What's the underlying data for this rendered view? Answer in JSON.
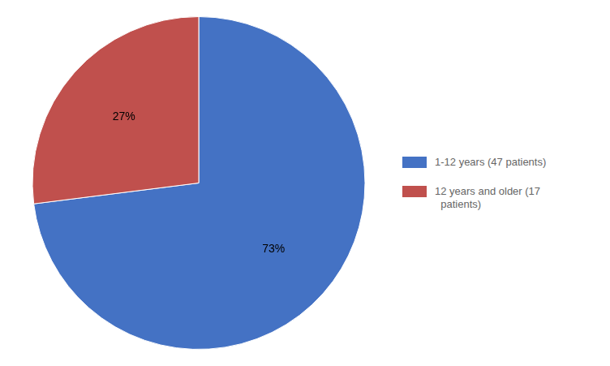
{
  "chart_data": {
    "type": "pie",
    "categories": [
      "1-12 years (47 patients)",
      "12 years and older (17\n  patients)"
    ],
    "values": [
      73,
      27
    ],
    "value_labels": [
      "73%",
      "27%"
    ],
    "colors": [
      "#4472C4",
      "#C0504D"
    ],
    "data_labels": true,
    "legend": "right"
  }
}
